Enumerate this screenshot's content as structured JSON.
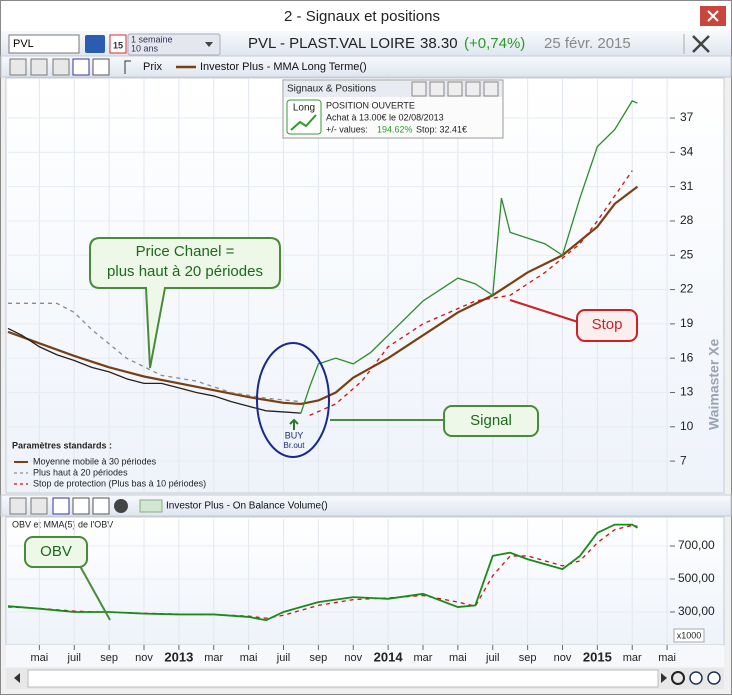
{
  "window": {
    "title": "2 - Signaux et positions"
  },
  "toolbar": {
    "symbol": "PVL",
    "calendar": "15",
    "period": [
      "1 semaine",
      "10 ans"
    ],
    "name": "PVL - PLAST.VAL LOIRE",
    "last": "38.30",
    "change": "(+0,74%)",
    "date": "25 févr. 2015"
  },
  "price_toolbar": {
    "items": [
      "Prix",
      "Investor Plus - MMA Long Terme()"
    ]
  },
  "signals": {
    "title": "Signaux & Positions",
    "badge": "Long",
    "status": "POSITION OUVERTE",
    "entry": "Achat à 13.00€ le 02/08/2013",
    "perf_label": "+/- values:",
    "perf": "194.62%",
    "stop": "Stop: 32.41€"
  },
  "price_chart": {
    "xlim": [
      2.2,
      41.6
    ],
    "ylim": [
      4.3,
      40.5
    ],
    "yticks": [
      7,
      10,
      13,
      16,
      19,
      22,
      25,
      28,
      31,
      34,
      37
    ],
    "price": [
      {
        "color": "#222222",
        "x": [
          2.2,
          3,
          4,
          5,
          6,
          7,
          8,
          9,
          10,
          11,
          12,
          13,
          14,
          15,
          16,
          17,
          18,
          19
        ],
        "values": [
          18.6,
          18.0,
          17.0,
          16.3,
          15.8,
          15.2,
          14.8,
          14.2,
          13.8,
          13.8,
          13.4,
          13.0,
          12.7,
          12.2,
          11.8,
          11.4,
          11.3,
          11.2
        ]
      },
      {
        "color": "#2e8b2e",
        "x": [
          19,
          19.5,
          20,
          21,
          22,
          23,
          24,
          25,
          26,
          27,
          28,
          29,
          30,
          30.5,
          31,
          32,
          33,
          34,
          35,
          36,
          37,
          38,
          38.3
        ],
        "values": [
          11.2,
          13.5,
          15.5,
          16.0,
          15.5,
          16.5,
          18.0,
          19.5,
          21.0,
          22.0,
          23.0,
          22.5,
          21.5,
          30.0,
          27.0,
          26.5,
          26.0,
          25.0,
          30.0,
          34.5,
          36.0,
          38.5,
          38.3
        ]
      }
    ],
    "legend_title": "Paramètres standards :",
    "series": [
      {
        "name": "Moyenne mobile à 30 périodes",
        "color": "#7a3f12",
        "dashed": false,
        "x": [
          2.2,
          4,
          6,
          8,
          10,
          12,
          14,
          16,
          18,
          19,
          20,
          21,
          22,
          24,
          26,
          28,
          30,
          32,
          34,
          36,
          37,
          38.3
        ],
        "values": [
          18.3,
          17.3,
          16.2,
          15.2,
          14.4,
          13.8,
          13.2,
          12.6,
          12.1,
          12.0,
          12.3,
          13.0,
          14.3,
          16.0,
          18.0,
          20.0,
          21.5,
          23.5,
          25.0,
          27.5,
          29.5,
          31.0
        ]
      },
      {
        "name": "Plus haut à 20 périodes",
        "color": "#8a8a8a",
        "dashed": true,
        "x": [
          2.2,
          5,
          6,
          7,
          9,
          11,
          13,
          15,
          17,
          19
        ],
        "values": [
          20.8,
          20.8,
          20.0,
          18.5,
          16.0,
          14.5,
          14.0,
          13.0,
          12.5,
          12.2
        ]
      },
      {
        "name": "Stop de protection (Plus bas à 10 périodes)",
        "color": "#cc1111",
        "dashed": true,
        "x": [
          19.5,
          21,
          22.5,
          24,
          26,
          29,
          31,
          33,
          35,
          36,
          38
        ],
        "values": [
          11.0,
          12.0,
          14.0,
          17.0,
          19.0,
          21.0,
          21.5,
          23.5,
          26.0,
          28.0,
          32.4
        ]
      }
    ],
    "callouts": {
      "channel": [
        "Price Chanel =",
        "plus haut à 20 périodes"
      ],
      "signal": "Signal",
      "stop": "Stop"
    },
    "buy": [
      "BUY",
      "Br.out"
    ],
    "watermark": "Waimaster Xe"
  },
  "obv_toolbar": {
    "label": "Investor Plus - On Balance Volume()"
  },
  "obv_chart": {
    "title": "OBV et MMA(5) de l'OBV",
    "unit": "x1000",
    "callout": "OBV",
    "ylim": [
      130,
      864
    ],
    "yticks": [
      {
        "value": 300,
        "label": "300,00"
      },
      {
        "value": 500,
        "label": "500,00"
      },
      {
        "value": 700,
        "label": "700,00"
      }
    ],
    "x": [
      2.2,
      4,
      6,
      8,
      10,
      12,
      14,
      16,
      17,
      18,
      19,
      20,
      22,
      24,
      26,
      28,
      29,
      30,
      31,
      32,
      34,
      35,
      36,
      37,
      38,
      38.3
    ],
    "obv": {
      "color": "#1a8a1a",
      "values": [
        335,
        320,
        300,
        300,
        290,
        285,
        285,
        270,
        250,
        300,
        330,
        360,
        390,
        380,
        410,
        330,
        340,
        640,
        660,
        620,
        560,
        640,
        780,
        830,
        830,
        810
      ]
    },
    "mma": {
      "color": "#cc1111",
      "values": [
        330,
        322,
        305,
        298,
        292,
        287,
        284,
        275,
        262,
        280,
        310,
        340,
        375,
        385,
        400,
        360,
        335,
        520,
        640,
        640,
        580,
        610,
        720,
        800,
        825,
        820
      ]
    }
  },
  "time_axis": {
    "xticks": [
      {
        "value": 4,
        "label": "mai"
      },
      {
        "value": 6,
        "label": "juil"
      },
      {
        "value": 8,
        "label": "sep"
      },
      {
        "value": 10,
        "label": "nov"
      },
      {
        "value": 12,
        "label": "2013"
      },
      {
        "value": 14,
        "label": "mar"
      },
      {
        "value": 16,
        "label": "mai"
      },
      {
        "value": 18,
        "label": "juil"
      },
      {
        "value": 20,
        "label": "sep"
      },
      {
        "value": 22,
        "label": "nov"
      },
      {
        "value": 24,
        "label": "2014"
      },
      {
        "value": 26,
        "label": "mar"
      },
      {
        "value": 28,
        "label": "mai"
      },
      {
        "value": 30,
        "label": "juil"
      },
      {
        "value": 32,
        "label": "sep"
      },
      {
        "value": 34,
        "label": "nov"
      },
      {
        "value": 36,
        "label": "2015"
      },
      {
        "value": 38,
        "label": "mar"
      },
      {
        "value": 40,
        "label": "mai"
      }
    ]
  }
}
